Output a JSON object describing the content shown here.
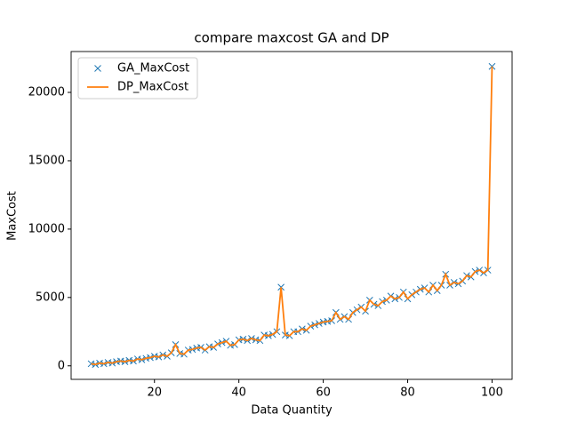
{
  "chart_data": {
    "type": "line",
    "title": "compare maxcost GA and DP",
    "xlabel": "Data Quantity",
    "ylabel": "MaxCost",
    "x": [
      5,
      6,
      7,
      8,
      9,
      10,
      11,
      12,
      13,
      14,
      15,
      16,
      17,
      18,
      19,
      20,
      21,
      22,
      23,
      24,
      25,
      26,
      27,
      28,
      29,
      30,
      31,
      32,
      33,
      34,
      35,
      36,
      37,
      38,
      39,
      40,
      41,
      42,
      43,
      44,
      45,
      46,
      47,
      48,
      49,
      50,
      51,
      52,
      53,
      54,
      55,
      56,
      57,
      58,
      59,
      60,
      61,
      62,
      63,
      64,
      65,
      66,
      67,
      68,
      69,
      70,
      71,
      72,
      73,
      74,
      75,
      76,
      77,
      78,
      79,
      80,
      81,
      82,
      83,
      84,
      85,
      86,
      87,
      88,
      89,
      90,
      91,
      92,
      93,
      94,
      95,
      96,
      97,
      98,
      99,
      100
    ],
    "series": [
      {
        "name": "GA_MaxCost",
        "color": "#1f77b4",
        "marker": "x",
        "values": [
          150,
          100,
          200,
          150,
          250,
          200,
          300,
          350,
          300,
          400,
          350,
          500,
          450,
          550,
          600,
          700,
          650,
          800,
          700,
          950,
          1550,
          900,
          850,
          1150,
          1200,
          1300,
          1350,
          1150,
          1400,
          1350,
          1600,
          1700,
          1800,
          1500,
          1550,
          1900,
          1950,
          1850,
          2000,
          1900,
          1850,
          2250,
          2200,
          2300,
          2500,
          5750,
          2250,
          2200,
          2500,
          2500,
          2700,
          2600,
          2900,
          3000,
          3100,
          3200,
          3250,
          3300,
          3900,
          3400,
          3600,
          3400,
          3900,
          4100,
          4300,
          4000,
          4800,
          4500,
          4400,
          4700,
          4800,
          5100,
          4900,
          5000,
          5400,
          4900,
          5200,
          5400,
          5600,
          5700,
          5400,
          5900,
          5500,
          5900,
          6700,
          5900,
          6100,
          6000,
          6200,
          6600,
          6500,
          6900,
          7000,
          6800,
          7000,
          21900
        ]
      },
      {
        "name": "DP_MaxCost",
        "color": "#ff7f0e",
        "marker": "line",
        "values": [
          150,
          100,
          200,
          150,
          250,
          200,
          300,
          350,
          300,
          400,
          350,
          500,
          450,
          550,
          600,
          700,
          650,
          800,
          700,
          950,
          1550,
          900,
          850,
          1150,
          1200,
          1300,
          1350,
          1150,
          1400,
          1350,
          1600,
          1700,
          1800,
          1500,
          1550,
          1900,
          1950,
          1850,
          2000,
          1900,
          1850,
          2250,
          2200,
          2300,
          2500,
          5750,
          2250,
          2200,
          2500,
          2500,
          2700,
          2600,
          2900,
          3000,
          3100,
          3200,
          3250,
          3300,
          3900,
          3400,
          3600,
          3400,
          3900,
          4100,
          4300,
          4000,
          4800,
          4500,
          4400,
          4700,
          4800,
          5100,
          4900,
          5000,
          5400,
          4900,
          5200,
          5400,
          5600,
          5700,
          5400,
          5900,
          5500,
          5900,
          6700,
          5900,
          6100,
          6000,
          6200,
          6600,
          6500,
          6900,
          7000,
          6800,
          7000,
          21900
        ]
      }
    ],
    "xlim": [
      0.25,
      104.75
    ],
    "ylim": [
      -990,
      22990
    ],
    "xticks": [
      20,
      40,
      60,
      80,
      100
    ],
    "yticks": [
      0,
      5000,
      10000,
      15000,
      20000
    ],
    "legend": "upper left"
  }
}
